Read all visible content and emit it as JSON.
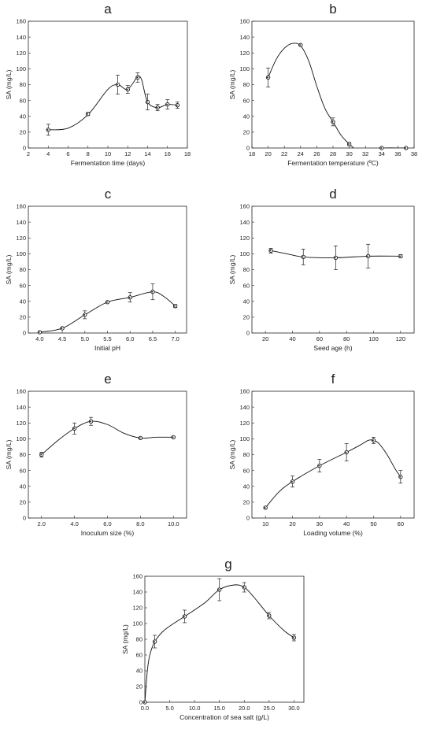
{
  "chart_data": [
    {
      "id": "a",
      "type": "scatter",
      "letter": "a",
      "xlabel": "Fermentation time (days)",
      "ylabel": "SA (mg/L)",
      "xlim": [
        2,
        18
      ],
      "ylim": [
        0,
        160
      ],
      "xticks": [
        2,
        4,
        6,
        8,
        10,
        12,
        14,
        16,
        18
      ],
      "xtick_labels": [
        "2",
        "4",
        "6",
        "8",
        "10",
        "12",
        "14",
        "16",
        "18"
      ],
      "yticks": [
        0,
        20,
        40,
        60,
        80,
        100,
        120,
        140,
        160
      ],
      "series": [
        {
          "x": [
            4,
            8,
            11,
            12,
            13,
            14,
            15,
            16,
            17
          ],
          "y": [
            23,
            43,
            80,
            74,
            89,
            58,
            51,
            55,
            54
          ],
          "err": [
            7,
            2,
            12,
            5,
            6,
            10,
            4,
            6,
            4
          ]
        }
      ]
    },
    {
      "id": "b",
      "type": "scatter",
      "letter": "b",
      "xlabel": "Fermentation temperature (ºC)",
      "ylabel": "SA (mg/L)",
      "xlim": [
        18,
        38
      ],
      "ylim": [
        0,
        160
      ],
      "xticks": [
        18,
        20,
        22,
        24,
        26,
        28,
        30,
        32,
        34,
        36,
        38
      ],
      "xtick_labels": [
        "18",
        "20",
        "22",
        "24",
        "26",
        "28",
        "30",
        "32",
        "34",
        "36",
        "38"
      ],
      "yticks": [
        0,
        20,
        40,
        60,
        80,
        100,
        120,
        140,
        160
      ],
      "series": [
        {
          "x": [
            20,
            24,
            28,
            30,
            34,
            37
          ],
          "y": [
            89,
            130,
            33,
            5,
            0,
            0
          ],
          "err": [
            12,
            1,
            5,
            2,
            0,
            0
          ]
        }
      ]
    },
    {
      "id": "c",
      "type": "scatter",
      "letter": "c",
      "xlabel": "Initial pH",
      "ylabel": "SA (mg/L)",
      "xlim": [
        3.75,
        7.25
      ],
      "ylim": [
        0,
        160
      ],
      "xticks": [
        4.0,
        4.5,
        5.0,
        5.5,
        6.0,
        6.5,
        7.0
      ],
      "xtick_labels": [
        "4.0",
        "4.5",
        "5.0",
        "5.5",
        "6.0",
        "6.5",
        "7.0"
      ],
      "yticks": [
        0,
        20,
        40,
        60,
        80,
        100,
        120,
        140,
        160
      ],
      "series": [
        {
          "x": [
            4.0,
            4.5,
            5.0,
            5.5,
            6.0,
            6.5,
            7.0
          ],
          "y": [
            1,
            6,
            23,
            39,
            45,
            52,
            34
          ],
          "err": [
            0,
            1,
            5,
            1,
            6,
            10,
            2
          ]
        }
      ]
    },
    {
      "id": "d",
      "type": "scatter",
      "letter": "d",
      "xlabel": "Seed age (h)",
      "ylabel": "SA (mg/L)",
      "xlim": [
        10,
        130
      ],
      "ylim": [
        0,
        160
      ],
      "xticks": [
        20,
        40,
        60,
        80,
        100,
        120
      ],
      "xtick_labels": [
        "20",
        "40",
        "60",
        "80",
        "100",
        "120"
      ],
      "yticks": [
        0,
        20,
        40,
        60,
        80,
        100,
        120,
        140,
        160
      ],
      "series": [
        {
          "x": [
            24,
            48,
            72,
            96,
            120
          ],
          "y": [
            104,
            96,
            95,
            97,
            97
          ],
          "err": [
            3,
            10,
            15,
            15,
            2
          ]
        }
      ]
    },
    {
      "id": "e",
      "type": "scatter",
      "letter": "e",
      "xlabel": "Inoculum size (%)",
      "ylabel": "SA (mg/L)",
      "xlim": [
        1.2,
        10.8
      ],
      "ylim": [
        0,
        160
      ],
      "xticks": [
        2,
        4,
        6,
        8,
        10
      ],
      "xtick_labels": [
        "2.0",
        "4.0",
        "6.0",
        "8.0",
        "10.0"
      ],
      "yticks": [
        0,
        20,
        40,
        60,
        80,
        100,
        120,
        140,
        160
      ],
      "series": [
        {
          "x": [
            2,
            4,
            5,
            8,
            10
          ],
          "y": [
            80,
            113,
            122,
            101,
            102
          ],
          "err": [
            3,
            7,
            5,
            1,
            1
          ]
        }
      ]
    },
    {
      "id": "f",
      "type": "scatter",
      "letter": "f",
      "xlabel": "Loading volume (%)",
      "ylabel": "SA (mg/L)",
      "xlim": [
        5,
        65
      ],
      "ylim": [
        0,
        160
      ],
      "xticks": [
        10,
        20,
        30,
        40,
        50,
        60
      ],
      "xtick_labels": [
        "10",
        "20",
        "30",
        "40",
        "50",
        "60"
      ],
      "yticks": [
        0,
        20,
        40,
        60,
        80,
        100,
        120,
        140,
        160
      ],
      "series": [
        {
          "x": [
            10,
            20,
            30,
            40,
            50,
            60
          ],
          "y": [
            13,
            46,
            66,
            83,
            98,
            52
          ],
          "err": [
            1,
            7,
            8,
            11,
            4,
            8
          ]
        }
      ]
    },
    {
      "id": "g",
      "type": "scatter",
      "letter": "g",
      "xlabel": "Concentration of sea salt (g/L)",
      "ylabel": "SA (mg/L)",
      "xlim": [
        0,
        32
      ],
      "ylim": [
        0,
        160
      ],
      "xticks": [
        0,
        5,
        10,
        15,
        20,
        25,
        30
      ],
      "xtick_labels": [
        "0.0",
        "5.0",
        "10.0",
        "15.0",
        "20.0",
        "25.0",
        "30.0"
      ],
      "yticks": [
        0,
        20,
        40,
        60,
        80,
        100,
        120,
        140,
        160
      ],
      "series": [
        {
          "x": [
            0,
            2,
            8,
            15,
            20,
            25,
            30
          ],
          "y": [
            0,
            77,
            109,
            143,
            146,
            110,
            82
          ],
          "err": [
            0,
            8,
            8,
            14,
            6,
            4,
            4
          ]
        }
      ]
    }
  ]
}
